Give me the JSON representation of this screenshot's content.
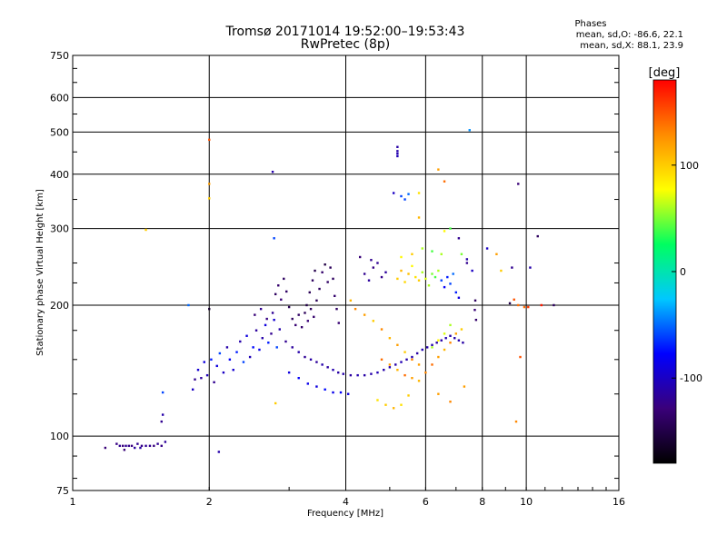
{
  "header": {
    "title_line1": "Tromsø 20171014 19:52:00–19:53:43",
    "title_line2": "RwPretec (8p)"
  },
  "phases": {
    "title": "Phases",
    "stats_o": "mean, sd,O: -86.6, 22.1",
    "stats_x": "mean, sd,X:  88.1, 23.9"
  },
  "chart_data": {
    "type": "scatter",
    "xlabel": "Frequency [MHz]",
    "ylabel": "Stationary phase Virtual Height [km]",
    "x_scale": "log",
    "y_scale": "log",
    "xlim": [
      1,
      16
    ],
    "ylim": [
      75,
      750
    ],
    "x_ticks": [
      1,
      2,
      4,
      6,
      8,
      10,
      16
    ],
    "y_ticks": [
      75,
      100,
      200,
      300,
      400,
      500,
      600,
      750
    ],
    "grid": true,
    "colorbar": {
      "label": "[deg]",
      "range": [
        -180,
        180
      ],
      "ticks": [
        -100,
        0,
        100
      ],
      "colors": [
        "#000000",
        "#3a007a",
        "#0000ff",
        "#00c8ff",
        "#00ff60",
        "#ffff00",
        "#ff8c00",
        "#ff0000"
      ]
    },
    "points": [
      [
        1.18,
        94,
        -130
      ],
      [
        1.25,
        96,
        -125
      ],
      [
        1.27,
        95,
        -120
      ],
      [
        1.29,
        95,
        -128
      ],
      [
        1.31,
        95,
        -118
      ],
      [
        1.33,
        95,
        -122
      ],
      [
        1.35,
        95,
        -126
      ],
      [
        1.37,
        94,
        -115
      ],
      [
        1.39,
        96,
        -120
      ],
      [
        1.42,
        95,
        -124
      ],
      [
        1.45,
        95,
        -118
      ],
      [
        1.48,
        95,
        -121
      ],
      [
        1.51,
        95,
        -127
      ],
      [
        1.54,
        96,
        -119
      ],
      [
        1.57,
        95,
        -123
      ],
      [
        1.6,
        97,
        -116
      ],
      [
        1.3,
        93,
        -130
      ],
      [
        1.41,
        94,
        -112
      ],
      [
        1.57,
        108,
        -120
      ],
      [
        1.58,
        112,
        -110
      ],
      [
        1.58,
        126,
        -60
      ],
      [
        1.8,
        200,
        -50
      ],
      [
        1.84,
        128,
        -100
      ],
      [
        1.86,
        135,
        -120
      ],
      [
        1.89,
        142,
        -95
      ],
      [
        1.92,
        136,
        -115
      ],
      [
        1.95,
        148,
        -90
      ],
      [
        1.98,
        138,
        -105
      ],
      [
        2.02,
        150,
        -70
      ],
      [
        2.05,
        133,
        -120
      ],
      [
        2.08,
        145,
        -90
      ],
      [
        2.11,
        155,
        -60
      ],
      [
        2.15,
        140,
        -100
      ],
      [
        2.19,
        160,
        -110
      ],
      [
        2.22,
        150,
        -80
      ],
      [
        2.26,
        142,
        -95
      ],
      [
        2.3,
        156,
        -70
      ],
      [
        2.34,
        165,
        -110
      ],
      [
        2.38,
        148,
        -60
      ],
      [
        2.42,
        170,
        -90
      ],
      [
        2.46,
        152,
        -105
      ],
      [
        2.5,
        160,
        -75
      ],
      [
        2.54,
        175,
        -115
      ],
      [
        2.58,
        158,
        -85
      ],
      [
        2.62,
        168,
        -110
      ],
      [
        2.66,
        180,
        -90
      ],
      [
        2.7,
        164,
        -70
      ],
      [
        2.74,
        172,
        -120
      ],
      [
        2.78,
        185,
        -95
      ],
      [
        2.82,
        160,
        -60
      ],
      [
        2.86,
        176,
        -110
      ],
      [
        2.52,
        190,
        -130
      ],
      [
        2.6,
        196,
        -120
      ],
      [
        2.68,
        186,
        -125
      ],
      [
        2.76,
        192,
        -118
      ],
      [
        2.8,
        212,
        -140
      ],
      [
        2.84,
        222,
        -135
      ],
      [
        2.88,
        206,
        -130
      ],
      [
        2.92,
        230,
        -140
      ],
      [
        2.96,
        215,
        -138
      ],
      [
        3.0,
        198,
        -145
      ],
      [
        3.05,
        186,
        -140
      ],
      [
        3.1,
        180,
        -132
      ],
      [
        3.15,
        190,
        -138
      ],
      [
        3.2,
        178,
        -135
      ],
      [
        3.25,
        192,
        -142
      ],
      [
        3.3,
        184,
        -130
      ],
      [
        3.35,
        196,
        -140
      ],
      [
        3.4,
        188,
        -135
      ],
      [
        3.45,
        205,
        -145
      ],
      [
        3.5,
        218,
        -140
      ],
      [
        3.55,
        238,
        -135
      ],
      [
        3.6,
        248,
        -150
      ],
      [
        3.65,
        226,
        -138
      ],
      [
        3.7,
        244,
        -142
      ],
      [
        3.75,
        230,
        -140
      ],
      [
        3.78,
        210,
        -135
      ],
      [
        3.82,
        196,
        -138
      ],
      [
        3.86,
        182,
        -132
      ],
      [
        3.28,
        200,
        -150
      ],
      [
        3.33,
        214,
        -144
      ],
      [
        3.38,
        228,
        -140
      ],
      [
        3.42,
        240,
        -148
      ],
      [
        2.95,
        165,
        -120
      ],
      [
        3.05,
        160,
        -115
      ],
      [
        3.15,
        156,
        -110
      ],
      [
        3.25,
        152,
        -118
      ],
      [
        3.35,
        150,
        -112
      ],
      [
        3.45,
        148,
        -116
      ],
      [
        3.55,
        146,
        -110
      ],
      [
        3.65,
        144,
        -114
      ],
      [
        3.75,
        142,
        -108
      ],
      [
        3.85,
        140,
        -112
      ],
      [
        3.95,
        139,
        -110
      ],
      [
        4.1,
        138,
        -114
      ],
      [
        4.25,
        138,
        -108
      ],
      [
        4.4,
        138,
        -112
      ],
      [
        4.55,
        139,
        -110
      ],
      [
        4.7,
        140,
        -106
      ],
      [
        4.85,
        142,
        -110
      ],
      [
        5.0,
        144,
        -108
      ],
      [
        5.15,
        146,
        -112
      ],
      [
        5.3,
        148,
        -106
      ],
      [
        5.45,
        150,
        -110
      ],
      [
        5.6,
        152,
        -108
      ],
      [
        5.75,
        155,
        -112
      ],
      [
        5.9,
        158,
        -106
      ],
      [
        6.05,
        160,
        -110
      ],
      [
        6.2,
        162,
        -108
      ],
      [
        6.35,
        164,
        -112
      ],
      [
        6.5,
        166,
        -110
      ],
      [
        6.65,
        168,
        -108
      ],
      [
        6.8,
        170,
        -112
      ],
      [
        6.95,
        168,
        -110
      ],
      [
        7.1,
        166,
        -108
      ],
      [
        7.25,
        164,
        -112
      ],
      [
        3.0,
        140,
        -90
      ],
      [
        3.15,
        136,
        -80
      ],
      [
        3.3,
        132,
        -85
      ],
      [
        3.45,
        130,
        -90
      ],
      [
        3.6,
        128,
        -75
      ],
      [
        3.75,
        126,
        -85
      ],
      [
        3.9,
        126,
        -80
      ],
      [
        4.05,
        125,
        -90
      ],
      [
        4.4,
        236,
        -120
      ],
      [
        4.5,
        228,
        -115
      ],
      [
        4.6,
        244,
        -125
      ],
      [
        4.7,
        250,
        -118
      ],
      [
        4.8,
        232,
        -122
      ],
      [
        4.9,
        238,
        -115
      ],
      [
        4.3,
        258,
        -130
      ],
      [
        4.55,
        254,
        -120
      ],
      [
        5.2,
        452,
        -110
      ],
      [
        5.2,
        440,
        -105
      ],
      [
        5.2,
        462,
        -112
      ],
      [
        5.2,
        446,
        -108
      ],
      [
        5.1,
        362,
        -100
      ],
      [
        5.3,
        356,
        -60
      ],
      [
        5.5,
        360,
        -50
      ],
      [
        5.4,
        350,
        -60
      ],
      [
        5.2,
        230,
        100
      ],
      [
        5.3,
        240,
        110
      ],
      [
        5.4,
        226,
        95
      ],
      [
        5.5,
        236,
        105
      ],
      [
        5.6,
        246,
        80
      ],
      [
        5.7,
        232,
        90
      ],
      [
        5.8,
        228,
        100
      ],
      [
        5.9,
        238,
        60
      ],
      [
        6.0,
        230,
        70
      ],
      [
        6.1,
        222,
        60
      ],
      [
        6.2,
        236,
        50
      ],
      [
        6.3,
        232,
        40
      ],
      [
        6.4,
        240,
        60
      ],
      [
        6.5,
        228,
        -60
      ],
      [
        6.6,
        220,
        -80
      ],
      [
        6.7,
        232,
        -70
      ],
      [
        6.8,
        224,
        -60
      ],
      [
        6.9,
        236,
        -50
      ],
      [
        7.0,
        214,
        -70
      ],
      [
        7.1,
        208,
        -90
      ],
      [
        5.3,
        258,
        80
      ],
      [
        5.6,
        262,
        100
      ],
      [
        5.9,
        270,
        60
      ],
      [
        6.2,
        266,
        40
      ],
      [
        6.5,
        262,
        60
      ],
      [
        7.2,
        262,
        50
      ],
      [
        7.4,
        250,
        -120
      ],
      [
        7.6,
        240,
        -100
      ],
      [
        4.1,
        205,
        110
      ],
      [
        4.2,
        196,
        130
      ],
      [
        4.4,
        190,
        120
      ],
      [
        4.6,
        184,
        100
      ],
      [
        4.8,
        176,
        130
      ],
      [
        5.0,
        168,
        110
      ],
      [
        5.2,
        162,
        120
      ],
      [
        5.4,
        156,
        100
      ],
      [
        5.6,
        150,
        130
      ],
      [
        5.8,
        146,
        120
      ],
      [
        4.8,
        150,
        140
      ],
      [
        5.0,
        146,
        120
      ],
      [
        5.2,
        142,
        110
      ],
      [
        5.4,
        138,
        140
      ],
      [
        5.6,
        136,
        120
      ],
      [
        5.8,
        134,
        110
      ],
      [
        6.0,
        140,
        130
      ],
      [
        6.2,
        146,
        140
      ],
      [
        6.4,
        152,
        120
      ],
      [
        6.6,
        158,
        110
      ],
      [
        6.8,
        164,
        130
      ],
      [
        7.0,
        172,
        120
      ],
      [
        7.2,
        176,
        100
      ],
      [
        4.7,
        121,
        90
      ],
      [
        4.9,
        118,
        100
      ],
      [
        5.1,
        116,
        110
      ],
      [
        5.3,
        118,
        90
      ],
      [
        5.5,
        124,
        100
      ],
      [
        6.2,
        160,
        60
      ],
      [
        6.4,
        166,
        80
      ],
      [
        6.6,
        172,
        70
      ],
      [
        6.8,
        180,
        60
      ],
      [
        6.4,
        125,
        120
      ],
      [
        6.8,
        120,
        130
      ],
      [
        7.3,
        130,
        120
      ],
      [
        6.4,
        410,
        120
      ],
      [
        6.6,
        385,
        140
      ],
      [
        5.8,
        362,
        90
      ],
      [
        6.8,
        300,
        40
      ],
      [
        7.1,
        285,
        -120
      ],
      [
        7.4,
        255,
        -110
      ],
      [
        7.5,
        505,
        -40
      ],
      [
        8.2,
        270,
        -100
      ],
      [
        8.6,
        262,
        120
      ],
      [
        8.8,
        240,
        100
      ],
      [
        9.3,
        244,
        -120
      ],
      [
        9.6,
        380,
        -130
      ],
      [
        10.6,
        288,
        -140
      ],
      [
        10.2,
        244,
        -110
      ],
      [
        9.2,
        202,
        -150
      ],
      [
        9.4,
        206,
        150
      ],
      [
        9.6,
        200,
        140
      ],
      [
        10.1,
        198,
        160
      ],
      [
        10.8,
        200,
        170
      ],
      [
        11.5,
        200,
        -140
      ],
      [
        9.9,
        198,
        140
      ],
      [
        9.7,
        152,
        150
      ],
      [
        9.5,
        108,
        130
      ],
      [
        7.7,
        195,
        -130
      ],
      [
        7.75,
        185,
        -135
      ],
      [
        7.72,
        205,
        -140
      ],
      [
        2.0,
        480,
        150
      ],
      [
        2.0,
        380,
        120
      ],
      [
        2.0,
        352,
        100
      ],
      [
        1.45,
        298,
        100
      ],
      [
        2.76,
        405,
        -110
      ],
      [
        2.78,
        285,
        -60
      ],
      [
        2.8,
        119,
        100
      ],
      [
        2.0,
        196,
        -160
      ],
      [
        2.1,
        92,
        -110
      ],
      [
        5.8,
        318,
        110
      ],
      [
        6.6,
        296,
        80
      ]
    ]
  }
}
